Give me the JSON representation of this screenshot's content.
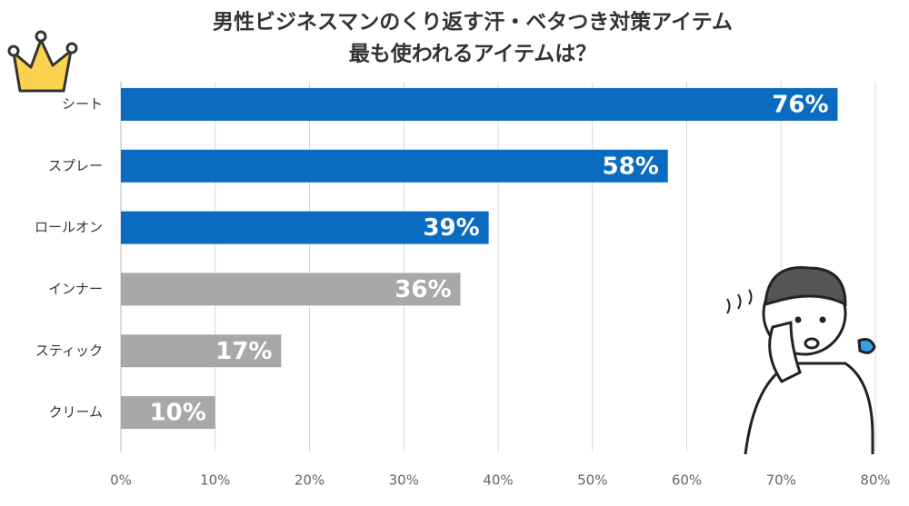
{
  "chart_data": {
    "type": "barh",
    "title": [
      "男性ビジネスマンのくり返す汗・ベタつき対策アイテム",
      "最も使われるアイテムは？"
    ],
    "categories": [
      "シート",
      "スプレー",
      "ロールオン",
      "インナー",
      "スティック",
      "クリーム"
    ],
    "values": [
      76,
      58,
      39,
      36,
      17,
      10
    ],
    "value_labels": [
      "76%",
      "58%",
      "39%",
      "36%",
      "17%",
      "10%"
    ],
    "colors": [
      "#0a6cc0",
      "#0a6cc0",
      "#0a6cc0",
      "#aaa8a6",
      "#aaa8a6",
      "#aaa8a6"
    ],
    "xlim": [
      0,
      80
    ],
    "xticks": [
      {
        "value": 0,
        "label": "0%"
      },
      {
        "value": 10,
        "label": "10%"
      },
      {
        "value": 20,
        "label": "20%"
      },
      {
        "value": 30,
        "label": "30%"
      },
      {
        "value": 40,
        "label": "40%"
      },
      {
        "value": 50,
        "label": "50%"
      },
      {
        "value": 60,
        "label": "60%"
      },
      {
        "value": 70,
        "label": "70%"
      },
      {
        "value": 80,
        "label": "80%"
      }
    ],
    "grid": true
  }
}
